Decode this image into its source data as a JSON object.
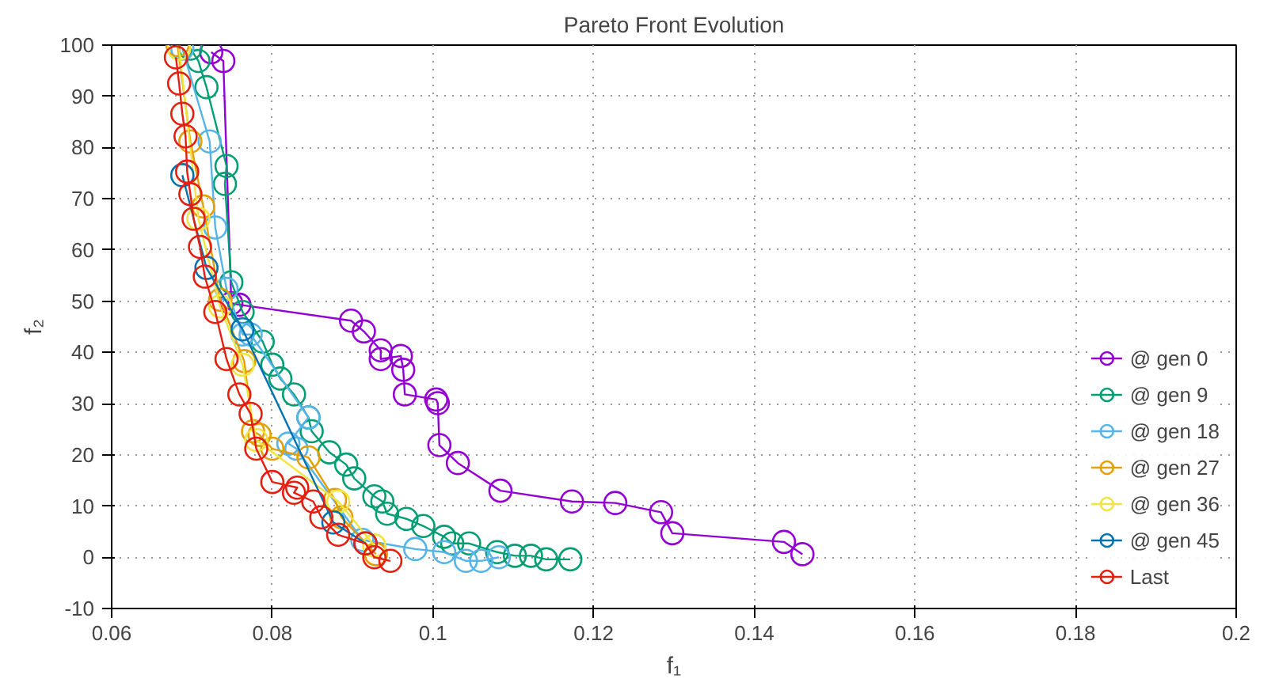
{
  "chart_data": {
    "type": "line",
    "title": "Pareto Front Evolution",
    "xlabel": "f₁",
    "ylabel": "f₂",
    "xlim": [
      0.06,
      0.2
    ],
    "ylim": [
      -10,
      100
    ],
    "xticks": [
      0.06,
      0.08,
      0.1,
      0.12,
      0.14,
      0.16,
      0.18,
      0.2
    ],
    "yticks": [
      -10,
      0,
      10,
      20,
      30,
      40,
      50,
      60,
      70,
      80,
      90,
      100
    ],
    "grid": true,
    "marker": "circle",
    "line_style": "solid",
    "legend": "bottom right",
    "series": [
      {
        "name": "@ gen 0",
        "color": "#9400d3",
        "x": [
          0.0724,
          0.0739,
          0.0749,
          0.0759,
          0.0898,
          0.0914,
          0.0935,
          0.0935,
          0.096,
          0.0963,
          0.0965,
          0.1004,
          0.1006,
          0.1008,
          0.1031,
          0.1084,
          0.1173,
          0.1227,
          0.1284,
          0.1298,
          0.1437,
          0.146
        ],
        "values": [
          98.6,
          96.9,
          49.6,
          49.3,
          46.2,
          44.1,
          40.4,
          38.7,
          39.3,
          36.6,
          31.8,
          30.8,
          30.1,
          21.9,
          18.4,
          13.0,
          10.9,
          10.6,
          8.8,
          4.7,
          3.0,
          0.6
        ]
      },
      {
        "name": "@ gen 9",
        "color": "#009e73",
        "x": [
          0.0698,
          0.0708,
          0.0718,
          0.0743,
          0.0741,
          0.0749,
          0.0763,
          0.0788,
          0.08,
          0.081,
          0.0827,
          0.0845,
          0.0849,
          0.0871,
          0.0892,
          0.0902,
          0.0927,
          0.0937,
          0.0943,
          0.0967,
          0.0988,
          0.1014,
          0.1024,
          0.1045,
          0.108,
          0.1102,
          0.1122,
          0.1141,
          0.1171
        ],
        "values": [
          99.3,
          96.9,
          91.8,
          76.4,
          72.9,
          53.7,
          47.9,
          42.1,
          37.6,
          34.9,
          31.8,
          27.3,
          24.6,
          20.5,
          18.1,
          15.4,
          11.9,
          10.9,
          8.5,
          7.5,
          6.1,
          4.0,
          2.7,
          2.7,
          1.0,
          0.3,
          0.3,
          -0.4,
          -0.4
        ]
      },
      {
        "name": "@ gen 18",
        "color": "#56b4e9",
        "x": [
          0.0688,
          0.0722,
          0.0729,
          0.0743,
          0.0763,
          0.0773,
          0.0845,
          0.082,
          0.083,
          0.0912,
          0.0978,
          0.1014,
          0.1041,
          0.106,
          0.1082
        ],
        "values": [
          99.3,
          81.2,
          64.4,
          52.4,
          43.5,
          43.5,
          27.3,
          22.2,
          21.2,
          3.4,
          1.6,
          1.0,
          -0.7,
          -0.7,
          0.0
        ]
      },
      {
        "name": "@ gen 27",
        "color": "#e69f00",
        "x": [
          0.0682,
          0.0698,
          0.0714,
          0.0735,
          0.0765,
          0.0776,
          0.0784,
          0.08,
          0.0845,
          0.0878,
          0.0886,
          0.0929
        ],
        "values": [
          100,
          81.2,
          68.5,
          50.3,
          38.3,
          24.6,
          23.9,
          21.2,
          19.5,
          11.2,
          7.8,
          0.6
        ]
      },
      {
        "name": "@ gen 36",
        "color": "#f0e442",
        "x": [
          0.0684,
          0.0708,
          0.0735,
          0.0763,
          0.078,
          0.0882,
          0.0927
        ],
        "values": [
          99.3,
          66.1,
          49.0,
          37.6,
          22.9,
          10.9,
          2.3
        ]
      },
      {
        "name": "@ gen 45",
        "color": "#0072b2",
        "x": [
          0.0688,
          0.0718,
          0.0763,
          0.0876,
          0.0916
        ],
        "values": [
          74.6,
          56.5,
          44.5,
          6.8,
          2.7
        ]
      },
      {
        "name": "Last",
        "color": "#e51e10",
        "x": [
          0.068,
          0.0684,
          0.0688,
          0.0692,
          0.0694,
          0.0698,
          0.0702,
          0.071,
          0.0716,
          0.0729,
          0.0743,
          0.0759,
          0.0773,
          0.078,
          0.08,
          0.0831,
          0.0827,
          0.0851,
          0.0861,
          0.0882,
          0.0916,
          0.0927,
          0.0947
        ],
        "values": [
          97.6,
          92.5,
          86.6,
          82.2,
          75.3,
          70.9,
          66.1,
          60.6,
          54.8,
          47.9,
          38.7,
          31.8,
          28.0,
          21.2,
          14.7,
          13.6,
          12.6,
          10.9,
          7.8,
          4.4,
          2.7,
          0.0,
          -0.7
        ]
      }
    ]
  }
}
